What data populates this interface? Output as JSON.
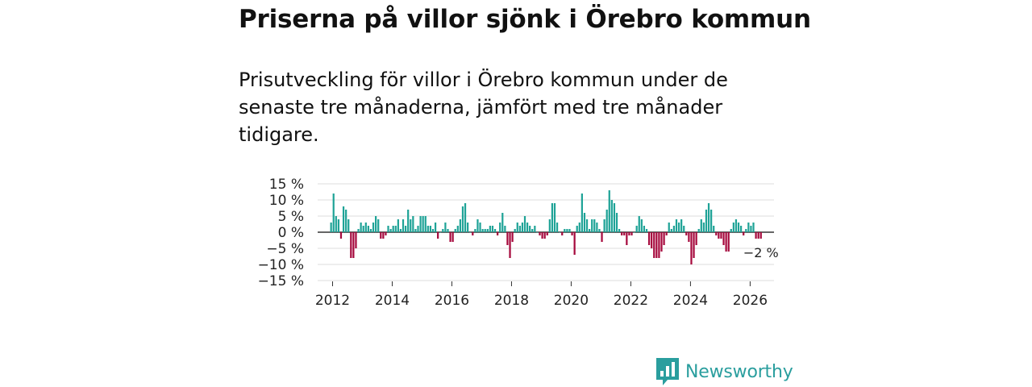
{
  "title": "Priserna på villor sjönk i Örebro kommun",
  "subtitle": "Prisutveckling för villor i Örebro kommun under de senaste tre månaderna, jämfört med tre månader tidigare.",
  "brand": "Newsworthy",
  "colors": {
    "positive": "#1fa397",
    "negative": "#a6093d",
    "grid": "#dddddd",
    "brand": "#2a9e9e"
  },
  "chart_data": {
    "type": "bar",
    "title": "Priserna på villor sjönk i Örebro kommun",
    "xlabel": "",
    "ylabel": "",
    "ylim": [
      -15,
      15
    ],
    "xlim": [
      2011.5,
      2026.8
    ],
    "yticks": [
      {
        "value": 15,
        "label": "15 %"
      },
      {
        "value": 10,
        "label": "10 %"
      },
      {
        "value": 5,
        "label": "5 %"
      },
      {
        "value": 0,
        "label": "0 %"
      },
      {
        "value": -5,
        "label": "−5 %"
      },
      {
        "value": -10,
        "label": "−10 %"
      },
      {
        "value": -15,
        "label": "−15 %"
      }
    ],
    "xticks": [
      {
        "value": 2012,
        "label": "2012"
      },
      {
        "value": 2014,
        "label": "2014"
      },
      {
        "value": 2016,
        "label": "2016"
      },
      {
        "value": 2018,
        "label": "2018"
      },
      {
        "value": 2020,
        "label": "2020"
      },
      {
        "value": 2022,
        "label": "2022"
      },
      {
        "value": 2024,
        "label": "2024"
      },
      {
        "value": 2026,
        "label": "2026"
      }
    ],
    "annotation": {
      "text": "−2 %",
      "value": -2
    },
    "start": 2011.95,
    "step": 0.0833,
    "values": [
      3,
      12,
      5,
      4,
      -2,
      8,
      7,
      4,
      -8,
      -8,
      -5,
      1,
      3,
      2,
      3,
      2,
      1,
      3,
      5,
      4,
      -2,
      -2,
      -1,
      2,
      1,
      2,
      2,
      4,
      1,
      4,
      2,
      7,
      4,
      5,
      1,
      2,
      5,
      5,
      5,
      2,
      2,
      1,
      3,
      -2,
      0,
      1,
      3,
      1,
      -3,
      -3,
      1,
      2,
      4,
      8,
      9,
      3,
      0,
      -1,
      1,
      4,
      3,
      1,
      1,
      1,
      2,
      2,
      1,
      -1,
      3,
      6,
      2,
      -4,
      -8,
      -3,
      1,
      3,
      2,
      3,
      5,
      3,
      2,
      1,
      2,
      0,
      -1,
      -2,
      -2,
      -1,
      4,
      9,
      9,
      3,
      0,
      -1,
      1,
      1,
      1,
      -1,
      -7,
      2,
      3,
      12,
      6,
      4,
      1,
      4,
      4,
      3,
      1,
      -3,
      4,
      7,
      13,
      10,
      9,
      6,
      1,
      -1,
      -1,
      -4,
      -1,
      -1,
      0,
      2,
      5,
      4,
      2,
      1,
      -4,
      -5,
      -8,
      -8,
      -8,
      -6,
      -4,
      -1,
      3,
      1,
      2,
      4,
      3,
      4,
      2,
      -1,
      -3,
      -10,
      -8,
      -4,
      1,
      4,
      3,
      7,
      9,
      7,
      2,
      -1,
      -2,
      -2,
      -4,
      -6,
      -6,
      1,
      3,
      4,
      3,
      2,
      -1,
      1,
      3,
      2,
      3,
      -2,
      -2,
      -2
    ]
  }
}
